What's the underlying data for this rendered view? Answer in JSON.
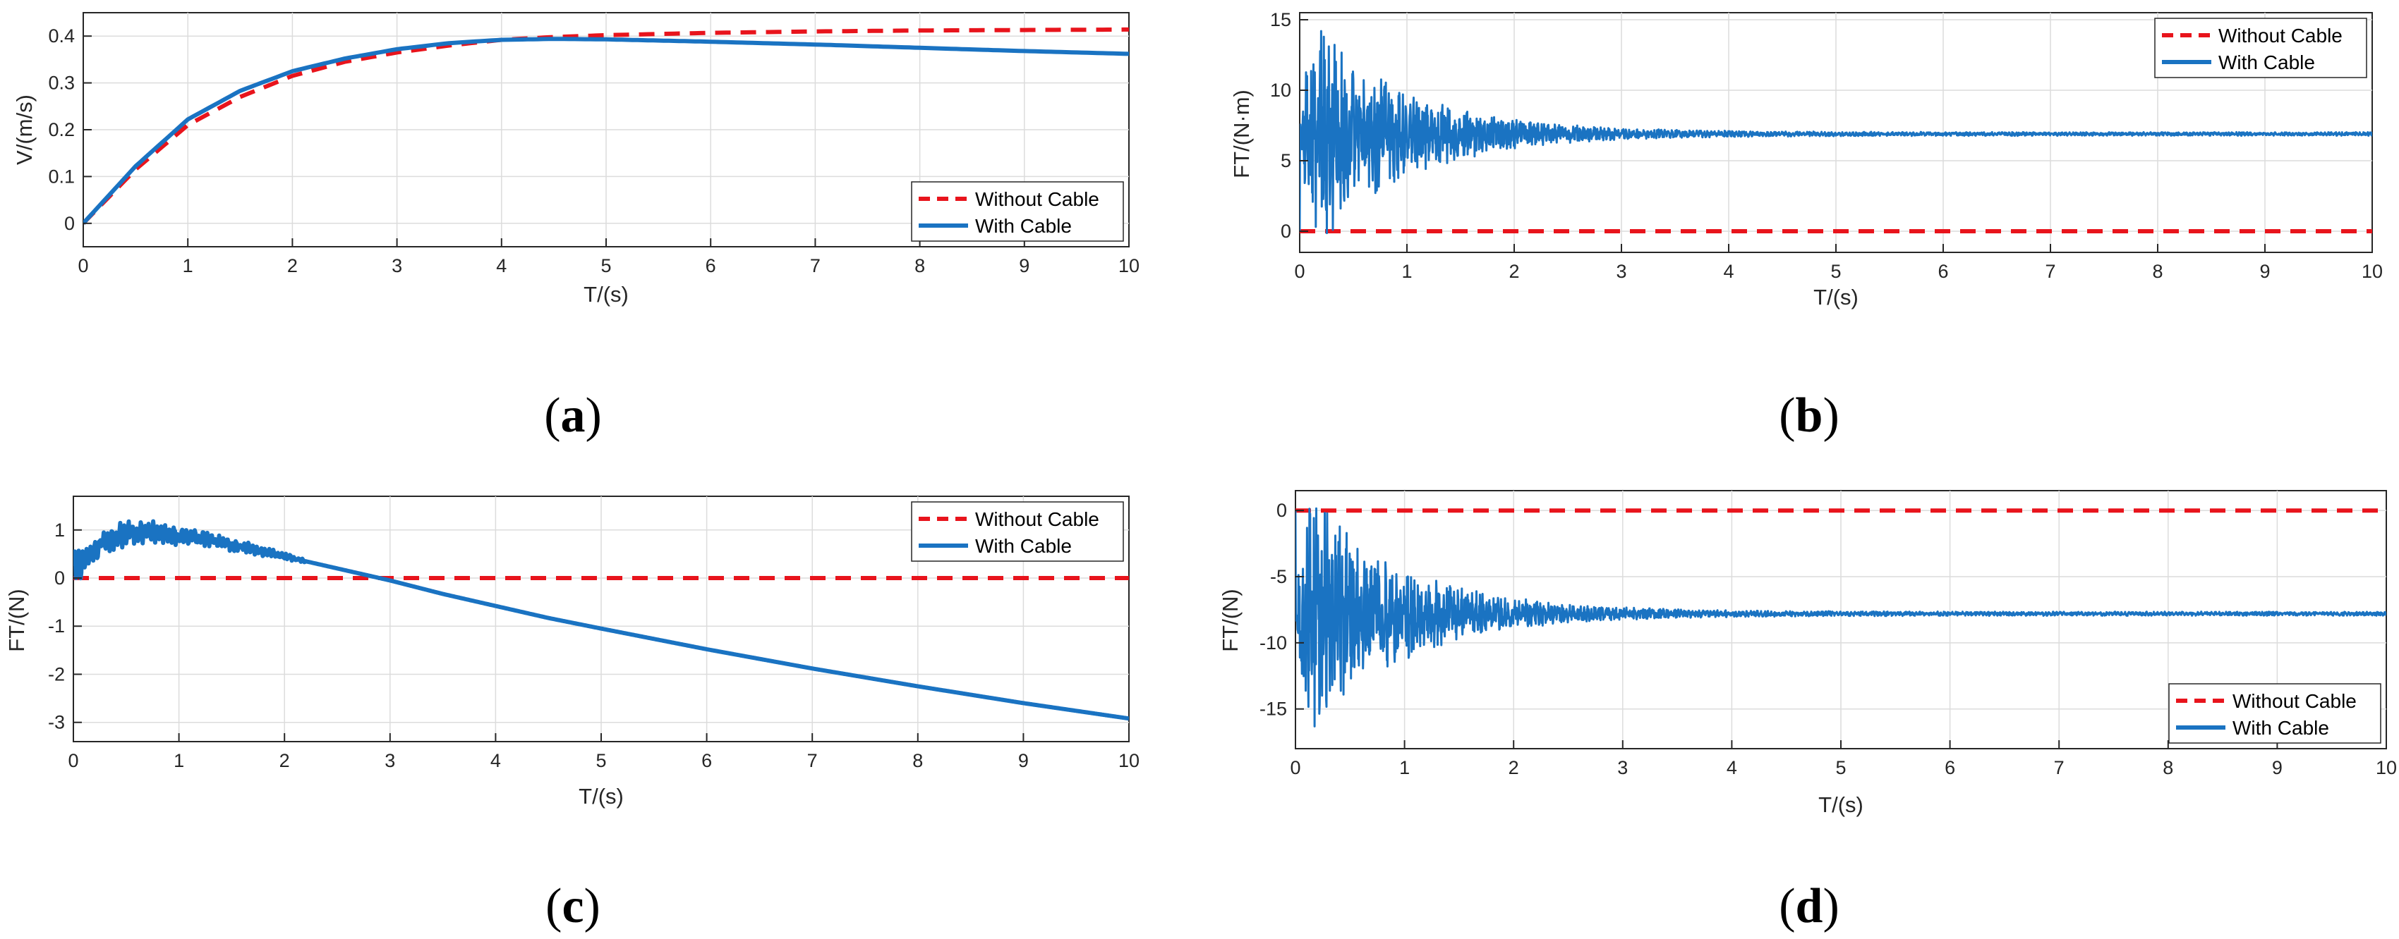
{
  "colors": {
    "without": "#e8141c",
    "with": "#1a73c2",
    "grid": "#dcdcdc",
    "axis": "#262626"
  },
  "chart_data": [
    {
      "type": "line",
      "id": "a",
      "caption_letter": "a",
      "ylabel": "V/(m/s)",
      "xlabel": "T/(s)",
      "xlim": [
        0,
        10
      ],
      "ylim": [
        -0.05,
        0.45
      ],
      "yticks": [
        0,
        0.1,
        0.2,
        0.3,
        0.4
      ],
      "ytick_labels": [
        "0",
        "0.1",
        "0.2",
        "0.3",
        "0.4"
      ],
      "xticks": [
        0,
        1,
        2,
        3,
        4,
        5,
        6,
        7,
        8,
        9,
        10
      ],
      "xtick_labels": [
        "0",
        "1",
        "2",
        "3",
        "4",
        "5",
        "6",
        "7",
        "8",
        "9",
        "10"
      ],
      "legend_position": "bottom-right",
      "legend_entries": [
        "Without Cable",
        "With Cable"
      ],
      "series": [
        {
          "name": "Without Cable",
          "style": "dashed",
          "x": [
            0,
            0.5,
            1,
            1.5,
            2,
            2.5,
            3,
            3.5,
            4,
            4.5,
            5,
            6,
            7,
            8,
            9,
            10
          ],
          "y": [
            0,
            0.115,
            0.21,
            0.27,
            0.315,
            0.345,
            0.365,
            0.38,
            0.392,
            0.398,
            0.402,
            0.407,
            0.41,
            0.412,
            0.413,
            0.414
          ]
        },
        {
          "name": "With Cable",
          "style": "solid",
          "x": [
            0,
            0.5,
            1,
            1.5,
            2,
            2.5,
            3,
            3.5,
            4,
            4.5,
            5,
            6,
            7,
            8,
            9,
            10
          ],
          "y": [
            0,
            0.122,
            0.222,
            0.283,
            0.325,
            0.352,
            0.372,
            0.385,
            0.392,
            0.394,
            0.393,
            0.388,
            0.382,
            0.375,
            0.368,
            0.362
          ]
        }
      ]
    },
    {
      "type": "line",
      "id": "b",
      "caption_letter": "b",
      "ylabel": "FT/(N·m)",
      "xlabel": "T/(s)",
      "xlim": [
        0,
        10
      ],
      "ylim": [
        -1.5,
        15.5
      ],
      "yticks": [
        0,
        5,
        10,
        15
      ],
      "ytick_labels": [
        "0",
        "5",
        "10",
        "15"
      ],
      "xticks": [
        0,
        1,
        2,
        3,
        4,
        5,
        6,
        7,
        8,
        9,
        10
      ],
      "xtick_labels": [
        "0",
        "1",
        "2",
        "3",
        "4",
        "5",
        "6",
        "7",
        "8",
        "9",
        "10"
      ],
      "legend_position": "top-right",
      "legend_entries": [
        "Without Cable",
        "With Cable"
      ],
      "series": [
        {
          "name": "Without Cable",
          "style": "dashed",
          "x": [
            0,
            10
          ],
          "y": [
            0,
            0
          ]
        },
        {
          "name": "With Cable",
          "style": "solid",
          "oscillating": true,
          "start": 0,
          "mean": 6.9,
          "initial_amplitude": 7.4,
          "decay_per_s": 1.15,
          "floor_amplitude": 0.1,
          "note": "decaying oscillation around mean, peaks ~14.3 near t=0.2 s, settles ~6.9"
        }
      ]
    },
    {
      "type": "line",
      "id": "c",
      "caption_letter": "c",
      "ylabel": "FT/(N)",
      "xlabel": "T/(s)",
      "xlim": [
        0,
        10
      ],
      "ylim": [
        -3.4,
        1.7
      ],
      "yticks": [
        -3,
        -2,
        -1,
        0,
        1
      ],
      "ytick_labels": [
        "-3",
        "-2",
        "-1",
        "0",
        "1"
      ],
      "xticks": [
        0,
        1,
        2,
        3,
        4,
        5,
        6,
        7,
        8,
        9,
        10
      ],
      "xtick_labels": [
        "0",
        "1",
        "2",
        "3",
        "4",
        "5",
        "6",
        "7",
        "8",
        "9",
        "10"
      ],
      "legend_position": "top-right",
      "legend_entries": [
        "Without Cable",
        "With Cable"
      ],
      "series": [
        {
          "name": "Without Cable",
          "style": "dashed",
          "x": [
            0,
            10
          ],
          "y": [
            0,
            0
          ]
        },
        {
          "name": "With Cable",
          "style": "solid",
          "x": [
            0,
            0.25,
            0.5,
            0.75,
            1,
            1.5,
            2,
            2.5,
            3,
            3.5,
            4,
            4.5,
            5,
            6,
            7,
            8,
            9,
            10
          ],
          "y": [
            0.2,
            0.7,
            0.95,
            0.95,
            0.88,
            0.7,
            0.45,
            0.2,
            -0.05,
            -0.33,
            -0.58,
            -0.83,
            -1.05,
            -1.48,
            -1.88,
            -2.25,
            -2.6,
            -2.92
          ],
          "noise_until": 2.2
        }
      ]
    },
    {
      "type": "line",
      "id": "d",
      "caption_letter": "d",
      "ylabel": "FT/(N)",
      "xlabel": "T/(s)",
      "xlim": [
        0,
        10
      ],
      "ylim": [
        -18,
        1.5
      ],
      "yticks": [
        -15,
        -10,
        -5,
        0
      ],
      "ytick_labels": [
        "-15",
        "-10",
        "-5",
        "0"
      ],
      "xticks": [
        0,
        1,
        2,
        3,
        4,
        5,
        6,
        7,
        8,
        9,
        10
      ],
      "xtick_labels": [
        "0",
        "1",
        "2",
        "3",
        "4",
        "5",
        "6",
        "7",
        "8",
        "9",
        "10"
      ],
      "legend_position": "bottom-right",
      "legend_entries": [
        "Without Cable",
        "With Cable"
      ],
      "series": [
        {
          "name": "Without Cable",
          "style": "dashed",
          "x": [
            0,
            10
          ],
          "y": [
            0,
            0
          ]
        },
        {
          "name": "With Cable",
          "style": "solid",
          "oscillating": true,
          "start": 0,
          "mean": -7.8,
          "initial_amplitude": 8.2,
          "decay_per_s": 1.15,
          "floor_amplitude": 0.12,
          "note": "decaying oscillation around mean, dips ~-16 near t=0.3 s, settles ~-7.8"
        }
      ]
    }
  ]
}
